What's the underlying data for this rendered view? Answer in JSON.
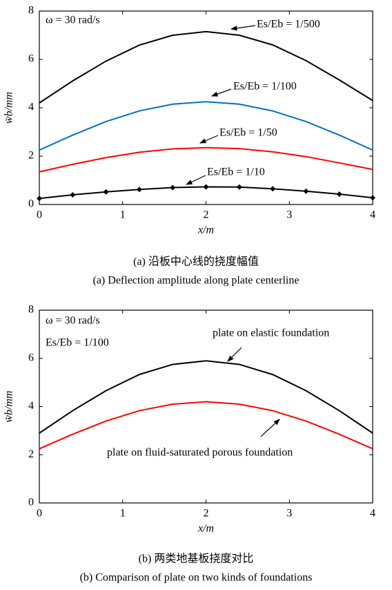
{
  "chart_data": [
    {
      "type": "line",
      "x": [
        0,
        0.4,
        0.8,
        1.2,
        1.6,
        2,
        2.4,
        2.8,
        3.2,
        3.6,
        4
      ],
      "series": [
        {
          "name": "Es/Eb = 1/500",
          "color": "#000000",
          "values": [
            4.2,
            5.11,
            5.93,
            6.59,
            7.0,
            7.15,
            7.0,
            6.6,
            5.95,
            5.15,
            4.3
          ]
        },
        {
          "name": "Es/Eb = 1/100",
          "color": "#0070c0",
          "values": [
            2.25,
            2.87,
            3.43,
            3.87,
            4.15,
            4.25,
            4.15,
            3.87,
            3.43,
            2.87,
            2.25
          ]
        },
        {
          "name": "Es/Eb = 1/50",
          "color": "#ff0000",
          "values": [
            1.35,
            1.66,
            1.94,
            2.16,
            2.3,
            2.35,
            2.31,
            2.18,
            1.98,
            1.72,
            1.45
          ]
        },
        {
          "name": "Es/Eb = 1/10",
          "color": "#000000",
          "marker": "diamond",
          "values": [
            0.25,
            0.4,
            0.52,
            0.62,
            0.7,
            0.73,
            0.72,
            0.65,
            0.55,
            0.43,
            0.28
          ]
        }
      ],
      "xlim": [
        0,
        4
      ],
      "ylim": [
        0,
        8
      ],
      "xticks": [
        0,
        1,
        2,
        3,
        4
      ],
      "yticks": [
        0,
        2,
        4,
        6,
        8
      ],
      "xlabel": "x/m",
      "ylabel": "w̄b/mm",
      "annotations": [
        "ω = 30 rad/s"
      ],
      "caption_zh": "(a) 沿板中心线的挠度幅值",
      "caption_en": "(a) Deflection amplitude along plate centerline"
    },
    {
      "type": "line",
      "x": [
        0,
        0.4,
        0.8,
        1.2,
        1.6,
        2,
        2.4,
        2.8,
        3.2,
        3.6,
        4
      ],
      "series": [
        {
          "name": "plate on elastic foundation",
          "color": "#000000",
          "values": [
            2.9,
            3.83,
            4.66,
            5.33,
            5.75,
            5.9,
            5.75,
            5.33,
            4.66,
            3.83,
            2.9
          ]
        },
        {
          "name": "plate on fluid-saturated porous foundation",
          "color": "#ff0000",
          "values": [
            2.25,
            2.85,
            3.4,
            3.83,
            4.1,
            4.2,
            4.1,
            3.83,
            3.4,
            2.85,
            2.25
          ]
        }
      ],
      "xlim": [
        0,
        4
      ],
      "ylim": [
        0,
        8
      ],
      "xticks": [
        0,
        1,
        2,
        3,
        4
      ],
      "yticks": [
        0,
        2,
        4,
        6,
        8
      ],
      "xlabel": "x/m",
      "ylabel": "w̄b/mm",
      "annotations": [
        "ω = 30 rad/s",
        "Es/Eb = 1/100"
      ],
      "caption_zh": "(b) 两类地基板挠度对比",
      "caption_en": "(b) Comparison of plate on two kinds of foundations"
    }
  ]
}
